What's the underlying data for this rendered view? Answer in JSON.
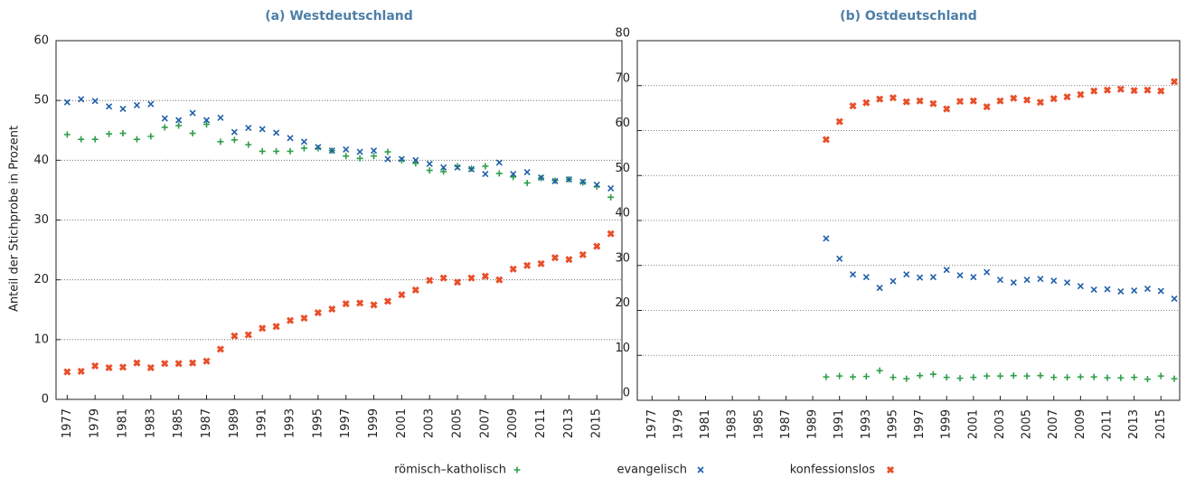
{
  "chart_data": [
    {
      "type": "scatter",
      "title": "(a) Westdeutschland",
      "ylabel": "Anteil der Stichprobe in Prozent",
      "x": [
        1977,
        1978,
        1979,
        1980,
        1981,
        1982,
        1983,
        1984,
        1985,
        1986,
        1987,
        1988,
        1989,
        1990,
        1991,
        1992,
        1993,
        1994,
        1995,
        1996,
        1997,
        1998,
        1999,
        2000,
        2001,
        2002,
        2003,
        2004,
        2005,
        2006,
        2007,
        2008,
        2009,
        2010,
        2011,
        2012,
        2013,
        2014,
        2015,
        2016
      ],
      "series": [
        {
          "name": "römisch–katholisch",
          "color": "#2e9e4a",
          "marker": "plus",
          "values": [
            44.3,
            43.5,
            43.5,
            44.4,
            44.5,
            43.5,
            44,
            45.5,
            45.8,
            44.5,
            46,
            43.1,
            43.4,
            42.6,
            41.5,
            41.5,
            41.5,
            42,
            42,
            41.6,
            40.7,
            40.3,
            40.7,
            41.4,
            40,
            39.5,
            38.3,
            38.1,
            39,
            38.6,
            39,
            37.8,
            37.2,
            36.2,
            37,
            36.6,
            36.8,
            36.3,
            35.6,
            33.8
          ]
        },
        {
          "name": "evangelisch",
          "color": "#1f5fa8",
          "marker": "cross",
          "values": [
            49.7,
            50.2,
            49.9,
            49,
            48.6,
            49.2,
            49.4,
            47,
            46.7,
            47.9,
            46.7,
            47.1,
            44.7,
            45.4,
            45.2,
            44.6,
            43.7,
            43.1,
            42.2,
            41.6,
            41.8,
            41.4,
            41.6,
            40.2,
            40.2,
            40,
            39.4,
            38.8,
            38.8,
            38.5,
            37.7,
            39.6,
            37.7,
            38,
            37.1,
            36.5,
            36.8,
            36.4,
            35.9,
            35.3
          ]
        },
        {
          "name": "konfessionslos",
          "color": "#e8502a",
          "marker": "cross-bold",
          "values": [
            4.6,
            4.7,
            5.6,
            5.3,
            5.4,
            6.1,
            5.3,
            6,
            6,
            6.1,
            6.4,
            8.4,
            10.6,
            10.8,
            11.9,
            12.2,
            13.2,
            13.6,
            14.5,
            15.1,
            16,
            16.1,
            15.8,
            16.4,
            17.5,
            18.3,
            19.9,
            20.3,
            19.6,
            20.3,
            20.6,
            20,
            21.8,
            22.4,
            22.7,
            23.7,
            23.4,
            24.2,
            25.6,
            27.7
          ]
        }
      ],
      "xlim": [
        1976.2,
        2016.8
      ],
      "xticks": [
        1977,
        1979,
        1981,
        1983,
        1985,
        1987,
        1989,
        1991,
        1993,
        1995,
        1997,
        1999,
        2001,
        2003,
        2005,
        2007,
        2009,
        2011,
        2013,
        2015
      ],
      "ylim": [
        0,
        60
      ],
      "yticks": [
        0,
        10,
        20,
        30,
        40,
        50,
        60
      ],
      "grid": true
    },
    {
      "type": "scatter",
      "title": "(b) Ostdeutschland",
      "x": [
        1977,
        1978,
        1979,
        1980,
        1981,
        1982,
        1983,
        1984,
        1985,
        1986,
        1987,
        1988,
        1989,
        1990,
        1991,
        1992,
        1993,
        1994,
        1995,
        1996,
        1997,
        1998,
        1999,
        2000,
        2001,
        2002,
        2003,
        2004,
        2005,
        2006,
        2007,
        2008,
        2009,
        2010,
        2011,
        2012,
        2013,
        2014,
        2015,
        2016
      ],
      "series": [
        {
          "color": "#2e9e4a",
          "marker": "plus",
          "values": [
            null,
            null,
            null,
            null,
            null,
            null,
            null,
            null,
            null,
            null,
            null,
            null,
            null,
            5.2,
            5.4,
            5.2,
            5.3,
            6.6,
            5.1,
            4.8,
            5.5,
            5.8,
            5.1,
            4.9,
            5.1,
            5.4,
            5.4,
            5.5,
            5.4,
            5.5,
            5.1,
            5.1,
            5.2,
            5.2,
            5,
            5,
            5.1,
            4.7,
            5.4,
            4.8
          ]
        },
        {
          "color": "#1f5fa8",
          "marker": "cross",
          "values": [
            null,
            null,
            null,
            null,
            null,
            null,
            null,
            null,
            null,
            null,
            null,
            null,
            null,
            36,
            31.5,
            28,
            27.4,
            25,
            26.5,
            28,
            27.3,
            27.4,
            29,
            27.8,
            27.4,
            28.5,
            26.8,
            26.2,
            26.8,
            27,
            26.6,
            26.2,
            25.4,
            24.6,
            24.7,
            24.2,
            24.4,
            24.8,
            24.3,
            22.6
          ]
        },
        {
          "color": "#e8502a",
          "marker": "cross-bold",
          "values": [
            null,
            null,
            null,
            null,
            null,
            null,
            null,
            null,
            null,
            null,
            null,
            null,
            null,
            58,
            62,
            65.5,
            66.2,
            67,
            67.3,
            66.4,
            66.6,
            66,
            64.8,
            66.5,
            66.6,
            65.3,
            66.6,
            67.2,
            66.8,
            66.3,
            67.1,
            67.5,
            68,
            68.8,
            69,
            69.2,
            68.9,
            69,
            68.8,
            70.9
          ]
        }
      ],
      "xlim": [
        1975.9,
        2016.4
      ],
      "xticks": [
        1977,
        1979,
        1981,
        1983,
        1985,
        1987,
        1989,
        1991,
        1993,
        1995,
        1997,
        1999,
        2001,
        2003,
        2005,
        2007,
        2009,
        2011,
        2013,
        2015
      ],
      "ylim": [
        0,
        80
      ],
      "yticks": [
        0,
        10,
        20,
        30,
        40,
        50,
        60,
        70,
        80
      ],
      "grid": true
    }
  ]
}
